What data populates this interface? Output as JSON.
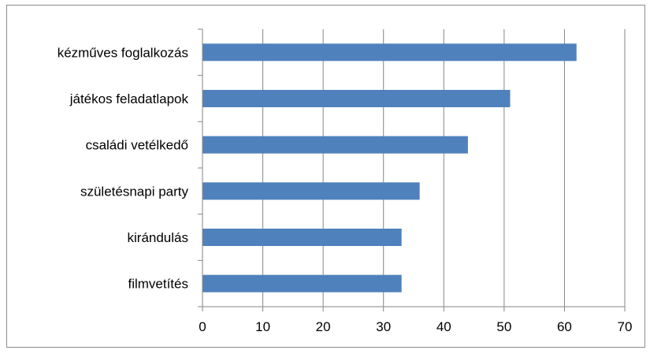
{
  "chart_data": {
    "type": "bar",
    "orientation": "horizontal",
    "categories": [
      "kézműves foglalkozás",
      "játékos feladatlapok",
      "családi vetélkedő",
      "születésnapi party",
      "kirándulás",
      "filmvetítés"
    ],
    "values": [
      62,
      51,
      44,
      36,
      33,
      33
    ],
    "xlim": [
      0,
      70
    ],
    "xticks": [
      "0",
      "10",
      "20",
      "30",
      "40",
      "50",
      "60",
      "70"
    ],
    "grid": true,
    "legend": "none",
    "bar_color": "#4f81bd",
    "grid_color": "#868686"
  }
}
